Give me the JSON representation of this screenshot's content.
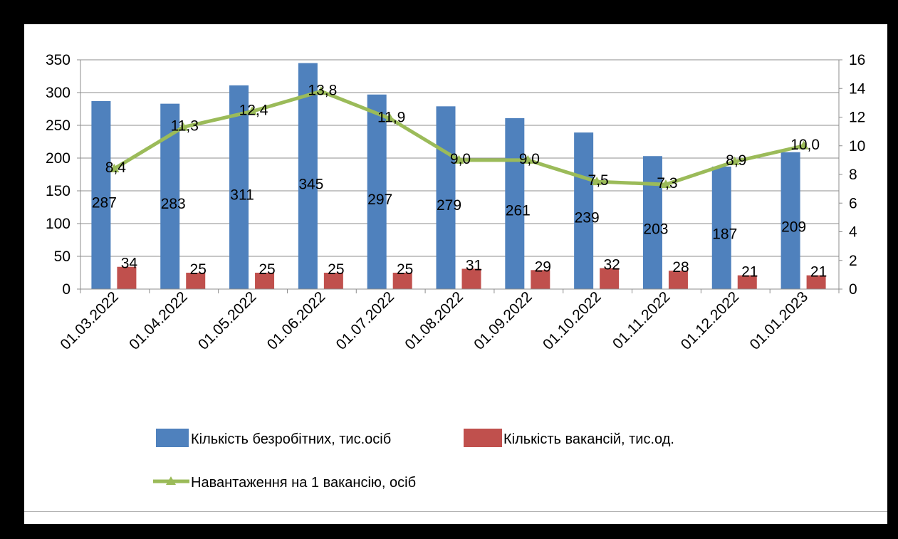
{
  "chart_data": {
    "type": "bar",
    "categories": [
      "01.03.2022",
      "01.04.2022",
      "01.05.2022",
      "01.06.2022",
      "01.07.2022",
      "01.08.2022",
      "01.09.2022",
      "01.10.2022",
      "01.11.2022",
      "01.12.2022",
      "01.01.2023"
    ],
    "series": [
      {
        "name": "Кількість безробітних, тис.осіб",
        "type": "bar",
        "axis": "left",
        "color": "#4F81BD",
        "values": [
          287,
          283,
          311,
          345,
          297,
          279,
          261,
          239,
          203,
          187,
          209
        ],
        "labels": [
          "287",
          "283",
          "311",
          "345",
          "297",
          "279",
          "261",
          "239",
          "203",
          "187",
          "209"
        ]
      },
      {
        "name": "Кількість вакансій, тис.од.",
        "type": "bar",
        "axis": "left",
        "color": "#C0504D",
        "values": [
          34,
          25,
          25,
          25,
          25,
          31,
          29,
          32,
          28,
          21,
          21
        ],
        "labels": [
          "34",
          "25",
          "25",
          "25",
          "25",
          "31",
          "29",
          "32",
          "28",
          "21",
          "21"
        ]
      },
      {
        "name": "Навантаження на 1 вакансію, осіб",
        "type": "line",
        "axis": "right",
        "color": "#9BBB59",
        "marker": "triangle",
        "values": [
          8.4,
          11.3,
          12.4,
          13.8,
          11.9,
          9.0,
          9.0,
          7.5,
          7.3,
          8.9,
          10.0
        ],
        "labels": [
          "8,4",
          "11,3",
          "12,4",
          "13,8",
          "11,9",
          "9,0",
          "9,0",
          "7,5",
          "7,3",
          "8,9",
          "10,0"
        ]
      }
    ],
    "y_left": {
      "range": [
        0,
        350
      ],
      "ticks": [
        "0",
        "50",
        "100",
        "150",
        "200",
        "250",
        "300",
        "350"
      ]
    },
    "y_right": {
      "range": [
        0,
        16
      ],
      "ticks": [
        "0",
        "2",
        "4",
        "6",
        "8",
        "10",
        "12",
        "14",
        "16"
      ]
    },
    "grid": true,
    "legend_position": "bottom"
  }
}
